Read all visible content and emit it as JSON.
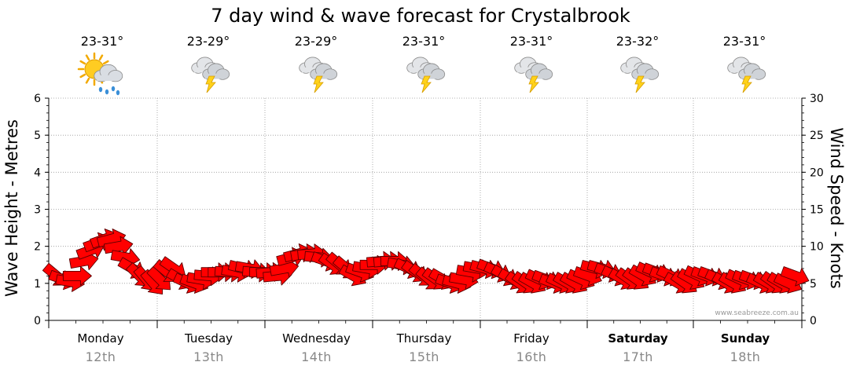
{
  "chart_data": {
    "type": "line",
    "title": "7 day wind & wave forecast for Crystalbrook",
    "ylabel_left": "Wave Height - Metres",
    "ylabel_right": "Wind Speed - Knots",
    "left_axis": {
      "ylim": [
        0,
        6
      ],
      "ticks": [
        "0",
        "1",
        "2",
        "3",
        "4",
        "5",
        "6"
      ]
    },
    "right_axis": {
      "ylim": [
        0,
        30
      ],
      "ticks": [
        "0",
        "5",
        "10",
        "15",
        "20",
        "25",
        "30"
      ]
    },
    "days": [
      {
        "name": "Monday",
        "date": "12th",
        "temp": "23-31°",
        "icon": "partly-sunny-rain-icon",
        "bold": false
      },
      {
        "name": "Tuesday",
        "date": "13th",
        "temp": "23-29°",
        "icon": "thunderstorm-icon",
        "bold": false
      },
      {
        "name": "Wednesday",
        "date": "14th",
        "temp": "23-29°",
        "icon": "thunderstorm-icon",
        "bold": false
      },
      {
        "name": "Thursday",
        "date": "15th",
        "temp": "23-31°",
        "icon": "thunderstorm-icon",
        "bold": false
      },
      {
        "name": "Friday",
        "date": "16th",
        "temp": "23-31°",
        "icon": "thunderstorm-icon",
        "bold": false
      },
      {
        "name": "Saturday",
        "date": "17th",
        "temp": "23-32°",
        "icon": "thunderstorm-icon",
        "bold": true
      },
      {
        "name": "Sunday",
        "date": "18th",
        "temp": "23-31°",
        "icon": "thunderstorm-icon",
        "bold": true
      }
    ],
    "wind_series": {
      "name": "Wind Speed",
      "units": "knots",
      "values": [
        6.0,
        5.5,
        5.2,
        6.0,
        8.0,
        9.5,
        10.5,
        11.0,
        11.0,
        10.0,
        8.5,
        7.0,
        6.0,
        5.5,
        5.0,
        5.5,
        6.5,
        7.0,
        5.5,
        5.0,
        5.0,
        5.5,
        6.0,
        6.5,
        6.5,
        6.5,
        6.5,
        7.0,
        7.0,
        6.5,
        6.5,
        6.5,
        6.0,
        7.0,
        8.5,
        9.0,
        9.0,
        9.0,
        8.5,
        8.0,
        7.5,
        7.5,
        7.0,
        6.0,
        6.5,
        7.0,
        7.5,
        8.0,
        8.0,
        8.0,
        7.5,
        7.0,
        6.5,
        6.0,
        5.5,
        5.5,
        5.5,
        5.0,
        5.0,
        5.5,
        6.5,
        7.0,
        7.0,
        7.0,
        6.5,
        6.0,
        5.5,
        5.0,
        5.0,
        5.0,
        5.5,
        5.5,
        5.0,
        5.0,
        5.0,
        5.0,
        5.5,
        6.0,
        7.0,
        7.0,
        6.5,
        6.0,
        5.5,
        5.5,
        5.5,
        6.0,
        6.5,
        6.5,
        6.0,
        6.0,
        5.0,
        5.0,
        5.5,
        6.0,
        6.0,
        6.0,
        5.5,
        5.0,
        5.0,
        5.5,
        5.5,
        5.5,
        5.0,
        5.0,
        5.0,
        5.0,
        5.0,
        6.0
      ],
      "direction_deg": [
        130,
        110,
        100,
        90,
        80,
        70,
        70,
        70,
        75,
        80,
        100,
        120,
        135,
        140,
        140,
        135,
        130,
        125,
        120,
        115,
        110,
        100,
        95,
        90,
        90,
        95,
        100,
        105,
        100,
        95,
        90,
        85,
        85,
        80,
        75,
        75,
        80,
        85,
        95,
        110,
        125,
        130,
        130,
        120,
        110,
        100,
        90,
        85,
        85,
        90,
        100,
        115,
        125,
        130,
        130,
        125,
        120,
        110,
        105,
        100,
        100,
        100,
        105,
        110,
        115,
        120,
        120,
        125,
        125,
        120,
        115,
        110,
        110,
        115,
        120,
        120,
        115,
        110,
        105,
        105,
        110,
        115,
        120,
        125,
        125,
        120,
        115,
        110,
        110,
        115,
        120,
        125,
        120,
        115,
        110,
        110,
        115,
        120,
        120,
        115,
        110,
        110,
        115,
        120,
        125,
        120,
        115,
        110
      ]
    },
    "credit": "www.seabreeze.com.au"
  }
}
